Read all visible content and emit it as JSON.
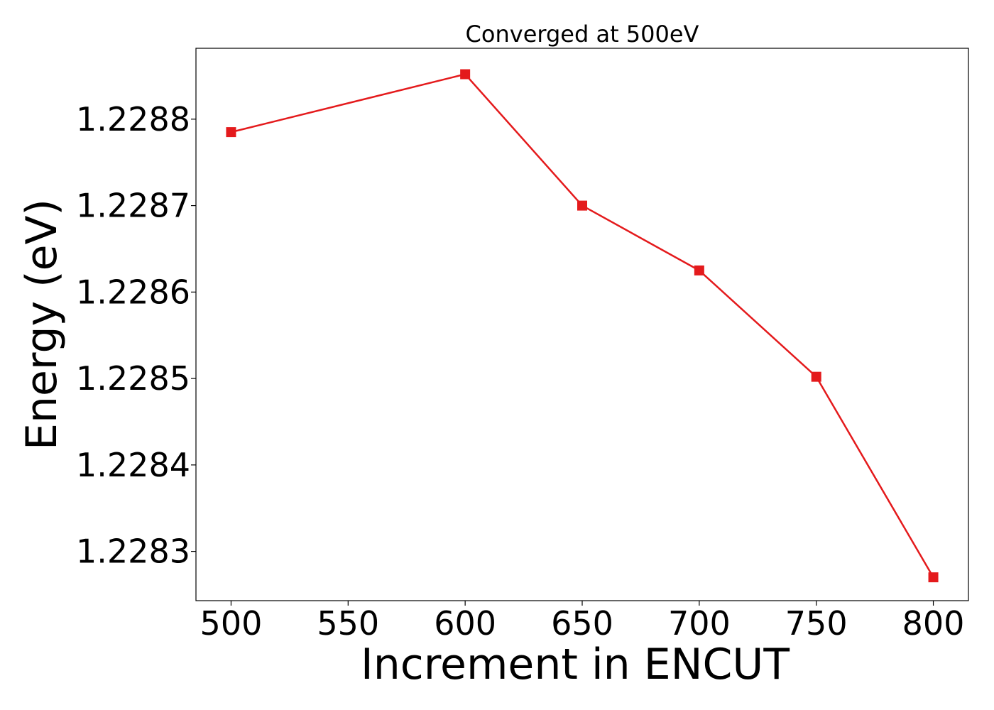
{
  "chart_data": {
    "type": "line",
    "title": "Converged at 500eV",
    "xlabel": "Increment in ENCUT",
    "ylabel": "Energy (eV)",
    "x": [
      500,
      600,
      650,
      700,
      750,
      800
    ],
    "series": [
      {
        "values": [
          1.228785,
          1.228852,
          1.2287,
          1.228625,
          1.228502,
          1.22827
        ],
        "color": "#e41a1c",
        "marker": "square"
      }
    ],
    "xlim": [
      485,
      815
    ],
    "ylim": [
      1.228243,
      1.228882
    ],
    "xticks": [
      500,
      550,
      600,
      650,
      700,
      750,
      800
    ],
    "xtick_labels": [
      "500",
      "550",
      "600",
      "650",
      "700",
      "750",
      "800"
    ],
    "yticks": [
      1.2283,
      1.2284,
      1.2285,
      1.2286,
      1.2287,
      1.2288
    ],
    "ytick_labels": [
      "1.2283",
      "1.2284",
      "1.2285",
      "1.2286",
      "1.2287",
      "1.2288"
    ],
    "grid": false,
    "legend": "none"
  }
}
